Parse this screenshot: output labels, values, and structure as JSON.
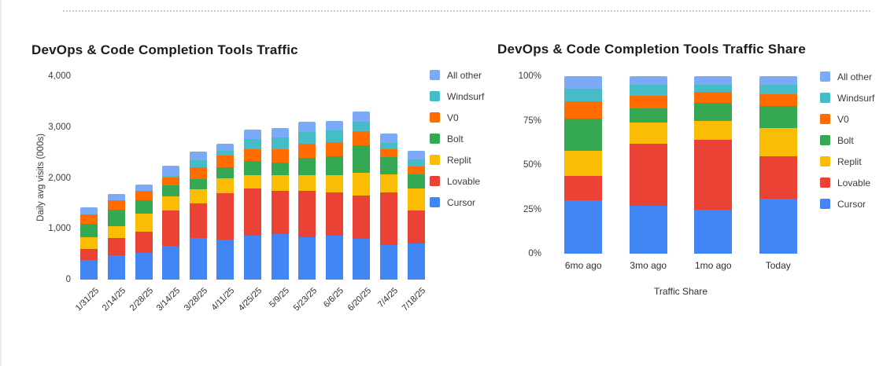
{
  "chart_data": [
    {
      "type": "bar",
      "stacked": true,
      "grid": false,
      "legend_position": "right",
      "title": "DevOps & Code Completion Tools Traffic",
      "ylabel": "Daily avg visits (000s)",
      "xlabel": "",
      "ylim": [
        0,
        4000
      ],
      "ytick_labels": [
        "4,000",
        "3,000",
        "2,000",
        "1,000",
        "0"
      ],
      "categories": [
        "1/31/25",
        "2/14/25",
        "2/28/25",
        "3/14/25",
        "3/28/25",
        "4/11/25",
        "4/25/25",
        "5/9/25",
        "5/23/25",
        "6/6/25",
        "6/20/25",
        "7/4/25",
        "7/18/25"
      ],
      "series": [
        {
          "name": "Cursor",
          "color": "#4285F4",
          "values": [
            380,
            480,
            530,
            660,
            815,
            790,
            870,
            890,
            840,
            870,
            800,
            680,
            710
          ]
        },
        {
          "name": "Lovable",
          "color": "#EA4335",
          "values": [
            230,
            335,
            410,
            700,
            690,
            910,
            930,
            850,
            900,
            850,
            860,
            1030,
            645
          ]
        },
        {
          "name": "Replit",
          "color": "#FBBC04",
          "values": [
            230,
            230,
            360,
            280,
            270,
            290,
            260,
            310,
            310,
            340,
            440,
            360,
            440
          ]
        },
        {
          "name": "Bolt",
          "color": "#34A853",
          "values": [
            260,
            335,
            260,
            210,
            200,
            220,
            280,
            260,
            340,
            360,
            540,
            335,
            280
          ]
        },
        {
          "name": "V0",
          "color": "#FF6D01",
          "values": [
            180,
            180,
            180,
            155,
            230,
            230,
            230,
            260,
            280,
            280,
            280,
            155,
            155
          ]
        },
        {
          "name": "Windsurf",
          "color": "#46BDC6",
          "values": [
            0,
            0,
            0,
            30,
            140,
            90,
            200,
            230,
            230,
            230,
            180,
            130,
            130
          ]
        },
        {
          "name": "All other",
          "color": "#7BAAF7",
          "values": [
            145,
            130,
            130,
            200,
            175,
            150,
            180,
            180,
            210,
            190,
            205,
            190,
            180
          ]
        }
      ]
    },
    {
      "type": "bar",
      "stacked": true,
      "percent": true,
      "grid": false,
      "legend_position": "right",
      "title": "DevOps & Code Completion Tools Traffic Share",
      "ylabel": "",
      "xlabel": "Traffic Share",
      "ylim": [
        0,
        100
      ],
      "ytick_labels": [
        "100%",
        "75%",
        "50%",
        "25%",
        "0%"
      ],
      "categories": [
        "6mo ago",
        "3mo ago",
        "1mo ago",
        "Today"
      ],
      "series": [
        {
          "name": "Cursor",
          "color": "#4285F4",
          "values": [
            30,
            27,
            25,
            31
          ]
        },
        {
          "name": "Lovable",
          "color": "#EA4335",
          "values": [
            14,
            35,
            39,
            24
          ]
        },
        {
          "name": "Replit",
          "color": "#FBBC04",
          "values": [
            14,
            12,
            11,
            16
          ]
        },
        {
          "name": "Bolt",
          "color": "#34A853",
          "values": [
            18,
            8,
            10,
            12
          ]
        },
        {
          "name": "V0",
          "color": "#FF6D01",
          "values": [
            10,
            7,
            6,
            7
          ]
        },
        {
          "name": "Windsurf",
          "color": "#46BDC6",
          "values": [
            7,
            6,
            4,
            5
          ]
        },
        {
          "name": "All other",
          "color": "#7BAAF7",
          "values": [
            7,
            5,
            5,
            5
          ]
        }
      ]
    }
  ]
}
